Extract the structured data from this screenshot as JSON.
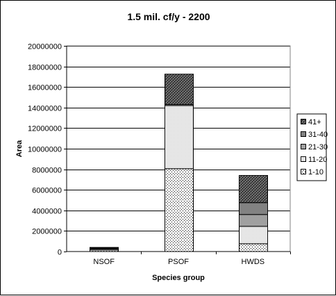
{
  "chart_data": {
    "type": "bar",
    "stacked": true,
    "title": "1.5 mil. cf/y - 2200",
    "xlabel": "Species group",
    "ylabel": "Area",
    "categories": [
      "NSOF",
      "PSOF",
      "HWDS"
    ],
    "ylim": [
      0,
      20000000
    ],
    "yticks": [
      0,
      2000000,
      4000000,
      6000000,
      8000000,
      10000000,
      12000000,
      14000000,
      16000000,
      18000000,
      20000000
    ],
    "ytick_labels": [
      "0",
      "2000000",
      "4000000",
      "6000000",
      "8000000",
      "10000000",
      "12000000",
      "14000000",
      "16000000",
      "18000000",
      "20000000"
    ],
    "grid": "horizontal",
    "legend_position": "right",
    "series": [
      {
        "name": "1-10",
        "values": [
          150000,
          8050000,
          750000
        ],
        "pattern": "sparse-dots",
        "color": "#ffffff"
      },
      {
        "name": "11-20",
        "values": [
          100000,
          6150000,
          1700000
        ],
        "pattern": "dense-dots",
        "color": "#e6e6e6"
      },
      {
        "name": "21-30",
        "values": [
          50000,
          100000,
          1150000
        ],
        "pattern": "fine-grid",
        "color": "#b4b4b4"
      },
      {
        "name": "31-40",
        "values": [
          50000,
          0,
          1150000
        ],
        "pattern": "medium-grey",
        "color": "#888888"
      },
      {
        "name": "41+",
        "values": [
          50000,
          2950000,
          2650000
        ],
        "pattern": "dark-check",
        "color": "#555555"
      }
    ]
  }
}
